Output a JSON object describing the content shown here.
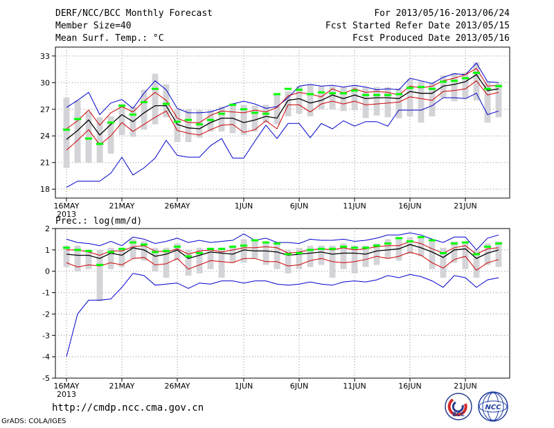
{
  "header": {
    "title": "DERF/NCC/BCC Monthly Forecast",
    "member_size": "Member Size=40",
    "variable_top": "Mean Surf. Temp.: °C",
    "forecast_period": "For 2013/05/16-2013/06/24",
    "fcst_started": "Fcst Started Refer Date 2013/05/15",
    "fcst_produced": "Fcst Produced Date 2013/05/16"
  },
  "footer": {
    "url": "http://cmdp.ncc.cma.gov.cn",
    "grads": "GrADS: COLA/IGES",
    "logo_bcc": "BCC",
    "logo_ncc": "NCC"
  },
  "colors": {
    "member_bar": "#d3d3d8",
    "median": "#00ff00",
    "envelope": "#0000cc",
    "spread": "#cc0000",
    "mean": "#000000",
    "grid": "#888888"
  },
  "chart_data": [
    {
      "type": "ensemble-box",
      "title": "Mean Surf. Temp.: °C",
      "ylim": [
        17,
        34
      ],
      "yticks": [
        18,
        21,
        24,
        27,
        30,
        33
      ],
      "xticks": [
        "16MAY",
        "21MAY",
        "26MAY",
        "1JUN",
        "6JUN",
        "11JUN",
        "16JUN",
        "21JUN"
      ],
      "xtick_day_index": [
        0,
        5,
        10,
        16,
        21,
        26,
        31,
        36
      ],
      "year_label": "2013",
      "days": 40,
      "series": [
        {
          "name": "max",
          "values": [
            27.2,
            28.0,
            28.9,
            26.4,
            27.7,
            28.1,
            27.1,
            28.8,
            30.2,
            29.2,
            27.1,
            26.6,
            26.6,
            26.7,
            27.1,
            27.6,
            27.9,
            27.6,
            27.1,
            27.3,
            28.3,
            29.6,
            29.8,
            29.6,
            29.7,
            29.5,
            29.7,
            29.5,
            29.2,
            29.3,
            29.2,
            30.5,
            30.2,
            29.9,
            30.6,
            31.0,
            30.9,
            32.2,
            30.1,
            30.0
          ]
        },
        {
          "name": "spread_upper",
          "values": [
            24.8,
            25.7,
            26.9,
            25.2,
            26.6,
            27.3,
            26.7,
            27.9,
            28.9,
            28.0,
            26.0,
            25.5,
            25.5,
            26.3,
            26.8,
            26.7,
            26.6,
            26.9,
            26.7,
            27.2,
            28.5,
            28.9,
            28.7,
            28.4,
            29.3,
            28.8,
            29.3,
            28.9,
            29.0,
            28.9,
            28.6,
            29.6,
            29.4,
            29.6,
            30.2,
            30.5,
            30.9,
            31.6,
            29.6,
            29.7
          ]
        },
        {
          "name": "mean",
          "values": [
            23.6,
            24.6,
            25.8,
            24.1,
            25.3,
            26.4,
            25.6,
            26.6,
            27.4,
            27.4,
            25.3,
            24.9,
            24.8,
            25.5,
            26.0,
            26.0,
            25.5,
            25.8,
            26.2,
            26.0,
            28.0,
            28.2,
            27.7,
            28.0,
            28.6,
            28.2,
            28.6,
            28.2,
            28.3,
            28.3,
            28.2,
            29.0,
            28.8,
            28.8,
            29.6,
            29.8,
            30.1,
            30.9,
            29.1,
            29.3
          ]
        },
        {
          "name": "spread_lower",
          "values": [
            22.4,
            23.5,
            24.7,
            23.0,
            24.0,
            25.5,
            24.5,
            25.3,
            26.1,
            26.8,
            24.6,
            24.3,
            24.1,
            24.7,
            25.2,
            25.3,
            24.4,
            24.7,
            25.7,
            24.8,
            27.5,
            27.5,
            26.7,
            27.6,
            27.9,
            27.6,
            27.9,
            27.5,
            27.6,
            27.7,
            27.8,
            28.4,
            28.2,
            28.0,
            29.0,
            29.1,
            29.3,
            30.2,
            28.6,
            28.9
          ]
        },
        {
          "name": "min",
          "values": [
            18.2,
            18.9,
            18.9,
            18.9,
            19.8,
            21.6,
            19.6,
            20.4,
            21.5,
            23.5,
            21.8,
            21.6,
            21.6,
            22.9,
            23.7,
            21.5,
            21.5,
            23.4,
            25.2,
            23.7,
            25.4,
            25.4,
            23.8,
            25.4,
            24.8,
            25.7,
            25.1,
            25.6,
            25.6,
            25.1,
            26.9,
            26.9,
            26.9,
            27.4,
            28.3,
            28.3,
            28.2,
            28.8,
            26.4,
            26.8
          ]
        },
        {
          "name": "median",
          "values": [
            24.7,
            25.9,
            23.7,
            23.1,
            25.5,
            27.4,
            26.4,
            27.8,
            29.3,
            27.6,
            25.6,
            25.8,
            25.3,
            25.8,
            26.5,
            27.5,
            27.0,
            26.6,
            26.5,
            28.7,
            29.3,
            29.2,
            28.7,
            28.9,
            28.8,
            28.8,
            29.1,
            28.6,
            28.6,
            28.6,
            28.7,
            29.4,
            29.5,
            29.3,
            30.1,
            30.2,
            30.5,
            31.1,
            29.3,
            29.6
          ]
        },
        {
          "name": "box_high",
          "values": [
            28.3,
            28.0,
            26.7,
            26.1,
            26.2,
            27.6,
            27.3,
            29.2,
            31.0,
            29.8,
            27.0,
            27.0,
            26.9,
            26.9,
            27.3,
            27.7,
            27.5,
            27.4,
            27.5,
            28.7,
            29.0,
            29.6,
            29.8,
            29.6,
            29.6,
            29.5,
            29.7,
            29.5,
            29.5,
            29.5,
            29.4,
            30.4,
            30.2,
            30.0,
            30.8,
            31.1,
            31.1,
            32.3,
            30.1,
            29.9
          ]
        },
        {
          "name": "box_low",
          "values": [
            20.4,
            21.0,
            21.0,
            21.0,
            22.0,
            24.1,
            23.9,
            24.7,
            25.3,
            26.1,
            23.3,
            23.3,
            23.8,
            24.5,
            24.5,
            24.3,
            24.1,
            24.5,
            25.5,
            25.3,
            26.2,
            26.5,
            26.2,
            27.0,
            27.0,
            26.8,
            26.9,
            26.0,
            26.3,
            26.1,
            26.0,
            26.2,
            25.5,
            26.2,
            28.3,
            27.9,
            28.2,
            28.0,
            25.5,
            26.1
          ]
        }
      ]
    },
    {
      "type": "ensemble-box",
      "title": "Prec.: log(mm/d)",
      "ylim": [
        -5,
        2
      ],
      "yticks": [
        -5,
        -4,
        -3,
        -2,
        -1,
        0,
        1,
        2
      ],
      "xticks": [
        "16MAY",
        "21MAY",
        "26MAY",
        "1JUN",
        "6JUN",
        "11JUN",
        "16JUN",
        "21JUN"
      ],
      "xtick_day_index": [
        0,
        5,
        10,
        16,
        21,
        26,
        31,
        36
      ],
      "year_label": "2013",
      "days": 40,
      "series": [
        {
          "name": "max",
          "values": [
            1.5,
            1.35,
            1.3,
            1.2,
            1.4,
            1.2,
            1.6,
            1.5,
            1.3,
            1.4,
            1.55,
            1.35,
            1.45,
            1.35,
            1.4,
            1.45,
            1.75,
            1.45,
            1.55,
            1.35,
            1.35,
            1.3,
            1.5,
            1.45,
            1.45,
            1.5,
            1.4,
            1.45,
            1.55,
            1.7,
            1.7,
            1.8,
            1.7,
            1.5,
            1.35,
            1.6,
            1.6,
            1.0,
            1.55,
            1.7
          ]
        },
        {
          "name": "spread_upper",
          "values": [
            1.0,
            1.0,
            0.9,
            0.75,
            0.95,
            0.95,
            1.15,
            1.2,
            0.95,
            0.9,
            1.05,
            0.8,
            0.95,
            1.0,
            0.9,
            1.0,
            1.1,
            1.1,
            1.15,
            1.1,
            0.85,
            0.9,
            1.0,
            1.05,
            1.0,
            1.1,
            1.0,
            1.05,
            1.15,
            1.2,
            1.2,
            1.4,
            1.3,
            1.05,
            0.85,
            1.1,
            1.2,
            0.8,
            1.05,
            1.1
          ]
        },
        {
          "name": "mean",
          "values": [
            0.8,
            0.75,
            0.75,
            0.6,
            0.85,
            0.75,
            1.1,
            1.0,
            0.7,
            0.8,
            1.0,
            0.6,
            0.75,
            0.9,
            0.85,
            0.8,
            1.0,
            0.95,
            0.95,
            0.9,
            0.75,
            0.8,
            0.85,
            0.9,
            0.8,
            0.85,
            0.85,
            0.8,
            0.95,
            1.0,
            1.05,
            1.25,
            1.1,
            0.9,
            0.65,
            1.0,
            1.05,
            0.6,
            0.85,
            1.0
          ]
        },
        {
          "name": "spread_lower",
          "values": [
            0.4,
            0.2,
            0.3,
            0.25,
            0.4,
            0.3,
            0.6,
            0.65,
            0.3,
            0.35,
            0.6,
            0.1,
            0.3,
            0.5,
            0.45,
            0.4,
            0.6,
            0.6,
            0.45,
            0.45,
            0.25,
            0.3,
            0.5,
            0.6,
            0.45,
            0.4,
            0.45,
            0.55,
            0.7,
            0.6,
            0.7,
            0.9,
            0.75,
            0.4,
            0.15,
            0.55,
            0.7,
            0.05,
            0.4,
            0.55
          ]
        },
        {
          "name": "min",
          "values": [
            -4.0,
            -2.0,
            -1.35,
            -1.35,
            -1.3,
            -0.75,
            -0.1,
            -0.2,
            -0.65,
            -0.6,
            -0.55,
            -0.8,
            -0.55,
            -0.6,
            -0.45,
            -0.45,
            -0.55,
            -0.45,
            -0.45,
            -0.6,
            -0.65,
            -0.6,
            -0.5,
            -0.6,
            -0.65,
            -0.5,
            -0.45,
            -0.5,
            -0.4,
            -0.2,
            -0.3,
            -0.15,
            -0.25,
            -0.45,
            -0.75,
            -0.2,
            -0.3,
            -0.75,
            -0.4,
            -0.3
          ]
        },
        {
          "name": "median",
          "values": [
            1.1,
            1.0,
            0.95,
            0.3,
            0.9,
            1.05,
            1.35,
            1.25,
            0.9,
            0.95,
            1.15,
            0.7,
            0.85,
            1.05,
            1.05,
            1.15,
            1.2,
            1.45,
            1.35,
            1.3,
            0.8,
            0.85,
            1.0,
            1.05,
            1.05,
            1.15,
            1.1,
            1.1,
            1.2,
            1.3,
            1.55,
            1.4,
            1.6,
            1.45,
            0.85,
            1.3,
            1.35,
            0.8,
            1.15,
            1.3
          ]
        },
        {
          "name": "box_high",
          "values": [
            1.2,
            1.2,
            1.0,
            1.0,
            1.1,
            1.1,
            1.5,
            1.4,
            1.1,
            1.1,
            1.3,
            1.0,
            1.1,
            1.1,
            1.1,
            1.2,
            1.5,
            1.4,
            1.4,
            1.3,
            1.0,
            1.1,
            1.2,
            1.2,
            1.2,
            1.3,
            1.2,
            1.2,
            1.3,
            1.5,
            1.6,
            1.6,
            1.6,
            1.4,
            1.1,
            1.4,
            1.4,
            1.0,
            1.3,
            1.4
          ]
        },
        {
          "name": "box_low",
          "values": [
            0.2,
            0.0,
            0.1,
            -1.4,
            0.1,
            0.2,
            0.6,
            0.5,
            0.0,
            -0.3,
            0.5,
            -0.2,
            -0.1,
            0.1,
            -0.3,
            0.4,
            0.4,
            0.6,
            0.3,
            0.1,
            -0.1,
            0.1,
            0.2,
            0.3,
            -0.3,
            0.1,
            -0.1,
            0.2,
            0.3,
            0.6,
            0.5,
            0.8,
            0.7,
            0.1,
            -0.3,
            0.4,
            0.1,
            -0.3,
            0.3,
            0.2
          ]
        }
      ]
    }
  ]
}
